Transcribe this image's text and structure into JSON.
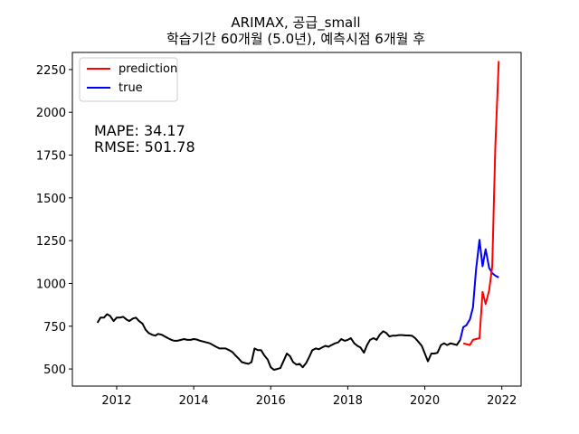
{
  "chart_data": {
    "type": "line",
    "title_line1": "ARIMAX, 공급_small",
    "title_line2": "학습기간 60개월 (5.0년), 예측시점 6개월 후",
    "xlabel": "",
    "ylabel": "",
    "xlim": [
      2010.85,
      2022.5
    ],
    "ylim": [
      400,
      2350
    ],
    "x_ticks": [
      2012,
      2014,
      2016,
      2018,
      2020,
      2022
    ],
    "y_ticks": [
      500,
      750,
      1000,
      1250,
      1500,
      1750,
      2000,
      2250
    ],
    "legend_position": "top-left",
    "legend": [
      "prediction",
      "true"
    ],
    "annotations": [
      "MAPE: 34.17",
      "RMSE: 501.78"
    ],
    "colors": {
      "history": "#000000",
      "prediction": "#ff0000",
      "true": "#0000ff"
    },
    "series": [
      {
        "name": "history",
        "x": [
          2011.5,
          2011.58,
          2011.67,
          2011.75,
          2011.83,
          2011.92,
          2012.0,
          2012.08,
          2012.17,
          2012.25,
          2012.33,
          2012.42,
          2012.5,
          2012.58,
          2012.67,
          2012.75,
          2012.83,
          2012.92,
          2013.0,
          2013.08,
          2013.17,
          2013.25,
          2013.33,
          2013.42,
          2013.5,
          2013.58,
          2013.67,
          2013.75,
          2013.83,
          2013.92,
          2014.0,
          2014.08,
          2014.17,
          2014.25,
          2014.33,
          2014.42,
          2014.5,
          2014.58,
          2014.67,
          2014.75,
          2014.83,
          2014.92,
          2015.0,
          2015.08,
          2015.17,
          2015.25,
          2015.33,
          2015.42,
          2015.5,
          2015.58,
          2015.67,
          2015.75,
          2015.83,
          2015.92,
          2016.0,
          2016.08,
          2016.17,
          2016.25,
          2016.33,
          2016.42,
          2016.5,
          2016.58,
          2016.67,
          2016.75,
          2016.83,
          2016.92,
          2017.0,
          2017.08,
          2017.17,
          2017.25,
          2017.33,
          2017.42,
          2017.5,
          2017.58,
          2017.67,
          2017.75,
          2017.83,
          2017.92,
          2018.0,
          2018.08,
          2018.17,
          2018.25,
          2018.33,
          2018.42,
          2018.5,
          2018.58,
          2018.67,
          2018.75,
          2018.83,
          2018.92,
          2019.0,
          2019.08,
          2019.17,
          2019.25,
          2019.33,
          2019.42,
          2019.5,
          2019.58,
          2019.67,
          2019.75,
          2019.83,
          2019.92,
          2020.0,
          2020.08,
          2020.17,
          2020.25,
          2020.33,
          2020.42,
          2020.5,
          2020.58,
          2020.67,
          2020.75,
          2020.83,
          2020.92
        ],
        "values": [
          770,
          800,
          800,
          820,
          810,
          780,
          800,
          800,
          805,
          790,
          780,
          795,
          800,
          780,
          765,
          730,
          710,
          700,
          695,
          705,
          700,
          690,
          680,
          670,
          665,
          665,
          670,
          675,
          670,
          670,
          675,
          672,
          665,
          660,
          655,
          650,
          640,
          630,
          620,
          620,
          620,
          610,
          600,
          580,
          560,
          540,
          535,
          530,
          540,
          620,
          610,
          610,
          580,
          555,
          510,
          495,
          500,
          505,
          545,
          590,
          575,
          540,
          525,
          530,
          510,
          535,
          570,
          610,
          620,
          615,
          625,
          635,
          630,
          640,
          650,
          655,
          675,
          665,
          670,
          680,
          650,
          635,
          625,
          595,
          640,
          670,
          680,
          670,
          700,
          720,
          710,
          690,
          695,
          695,
          698,
          698,
          696,
          696,
          694,
          680,
          660,
          635,
          590,
          545,
          590,
          590,
          595,
          640,
          650,
          640,
          650,
          645,
          640,
          670
        ]
      },
      {
        "name": "true",
        "x": [
          2020.92,
          2021.0,
          2021.08,
          2021.17,
          2021.25,
          2021.33,
          2021.42,
          2021.5,
          2021.58,
          2021.67,
          2021.75,
          2021.83,
          2021.92
        ],
        "values": [
          670,
          745,
          755,
          790,
          860,
          1080,
          1255,
          1100,
          1200,
          1090,
          1060,
          1045,
          1035
        ]
      },
      {
        "name": "prediction",
        "x": [
          2021.0,
          2021.08,
          2021.17,
          2021.25,
          2021.33,
          2021.42,
          2021.5,
          2021.58,
          2021.67,
          2021.75,
          2021.83,
          2021.92
        ],
        "values": [
          650,
          645,
          640,
          670,
          675,
          680,
          950,
          880,
          960,
          1100,
          1800,
          2300
        ]
      }
    ]
  }
}
